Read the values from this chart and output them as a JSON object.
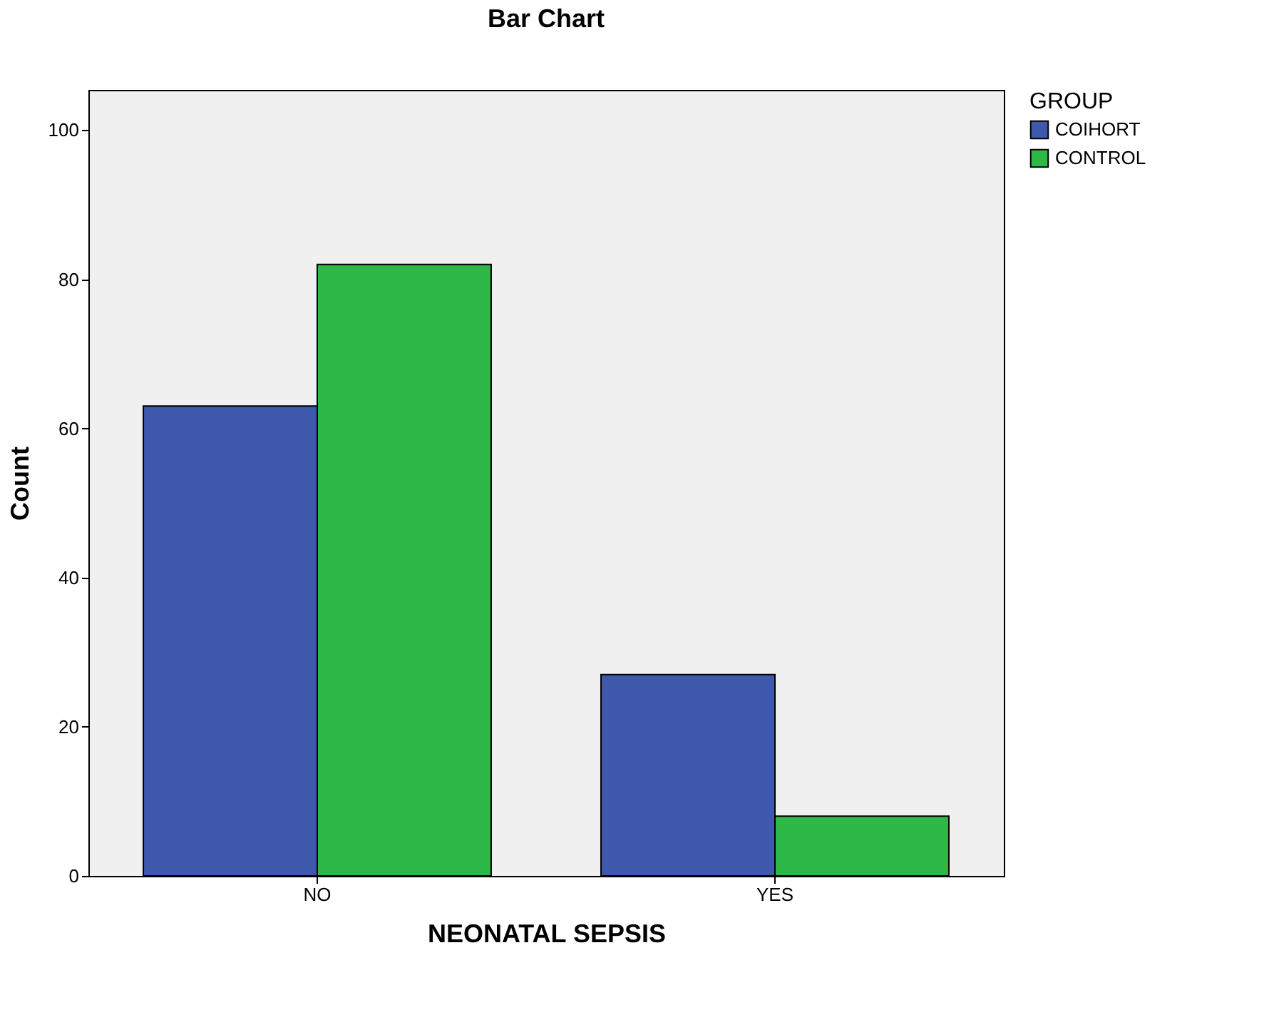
{
  "chart_data": {
    "type": "bar",
    "title": "Bar Chart",
    "xlabel": "NEONATAL SEPSIS",
    "ylabel": "Count",
    "legend_title": "GROUP",
    "categories": [
      "NO",
      "YES"
    ],
    "series": [
      {
        "name": "COIHORT",
        "color": "#3e58ac",
        "values": [
          63,
          27
        ]
      },
      {
        "name": "CONTROL",
        "color": "#2eb848",
        "values": [
          82,
          8
        ]
      }
    ],
    "ylim": [
      0,
      105.4
    ],
    "yticks": [
      0,
      20,
      40,
      60,
      80,
      100
    ],
    "grid": false,
    "legend": "top right"
  }
}
